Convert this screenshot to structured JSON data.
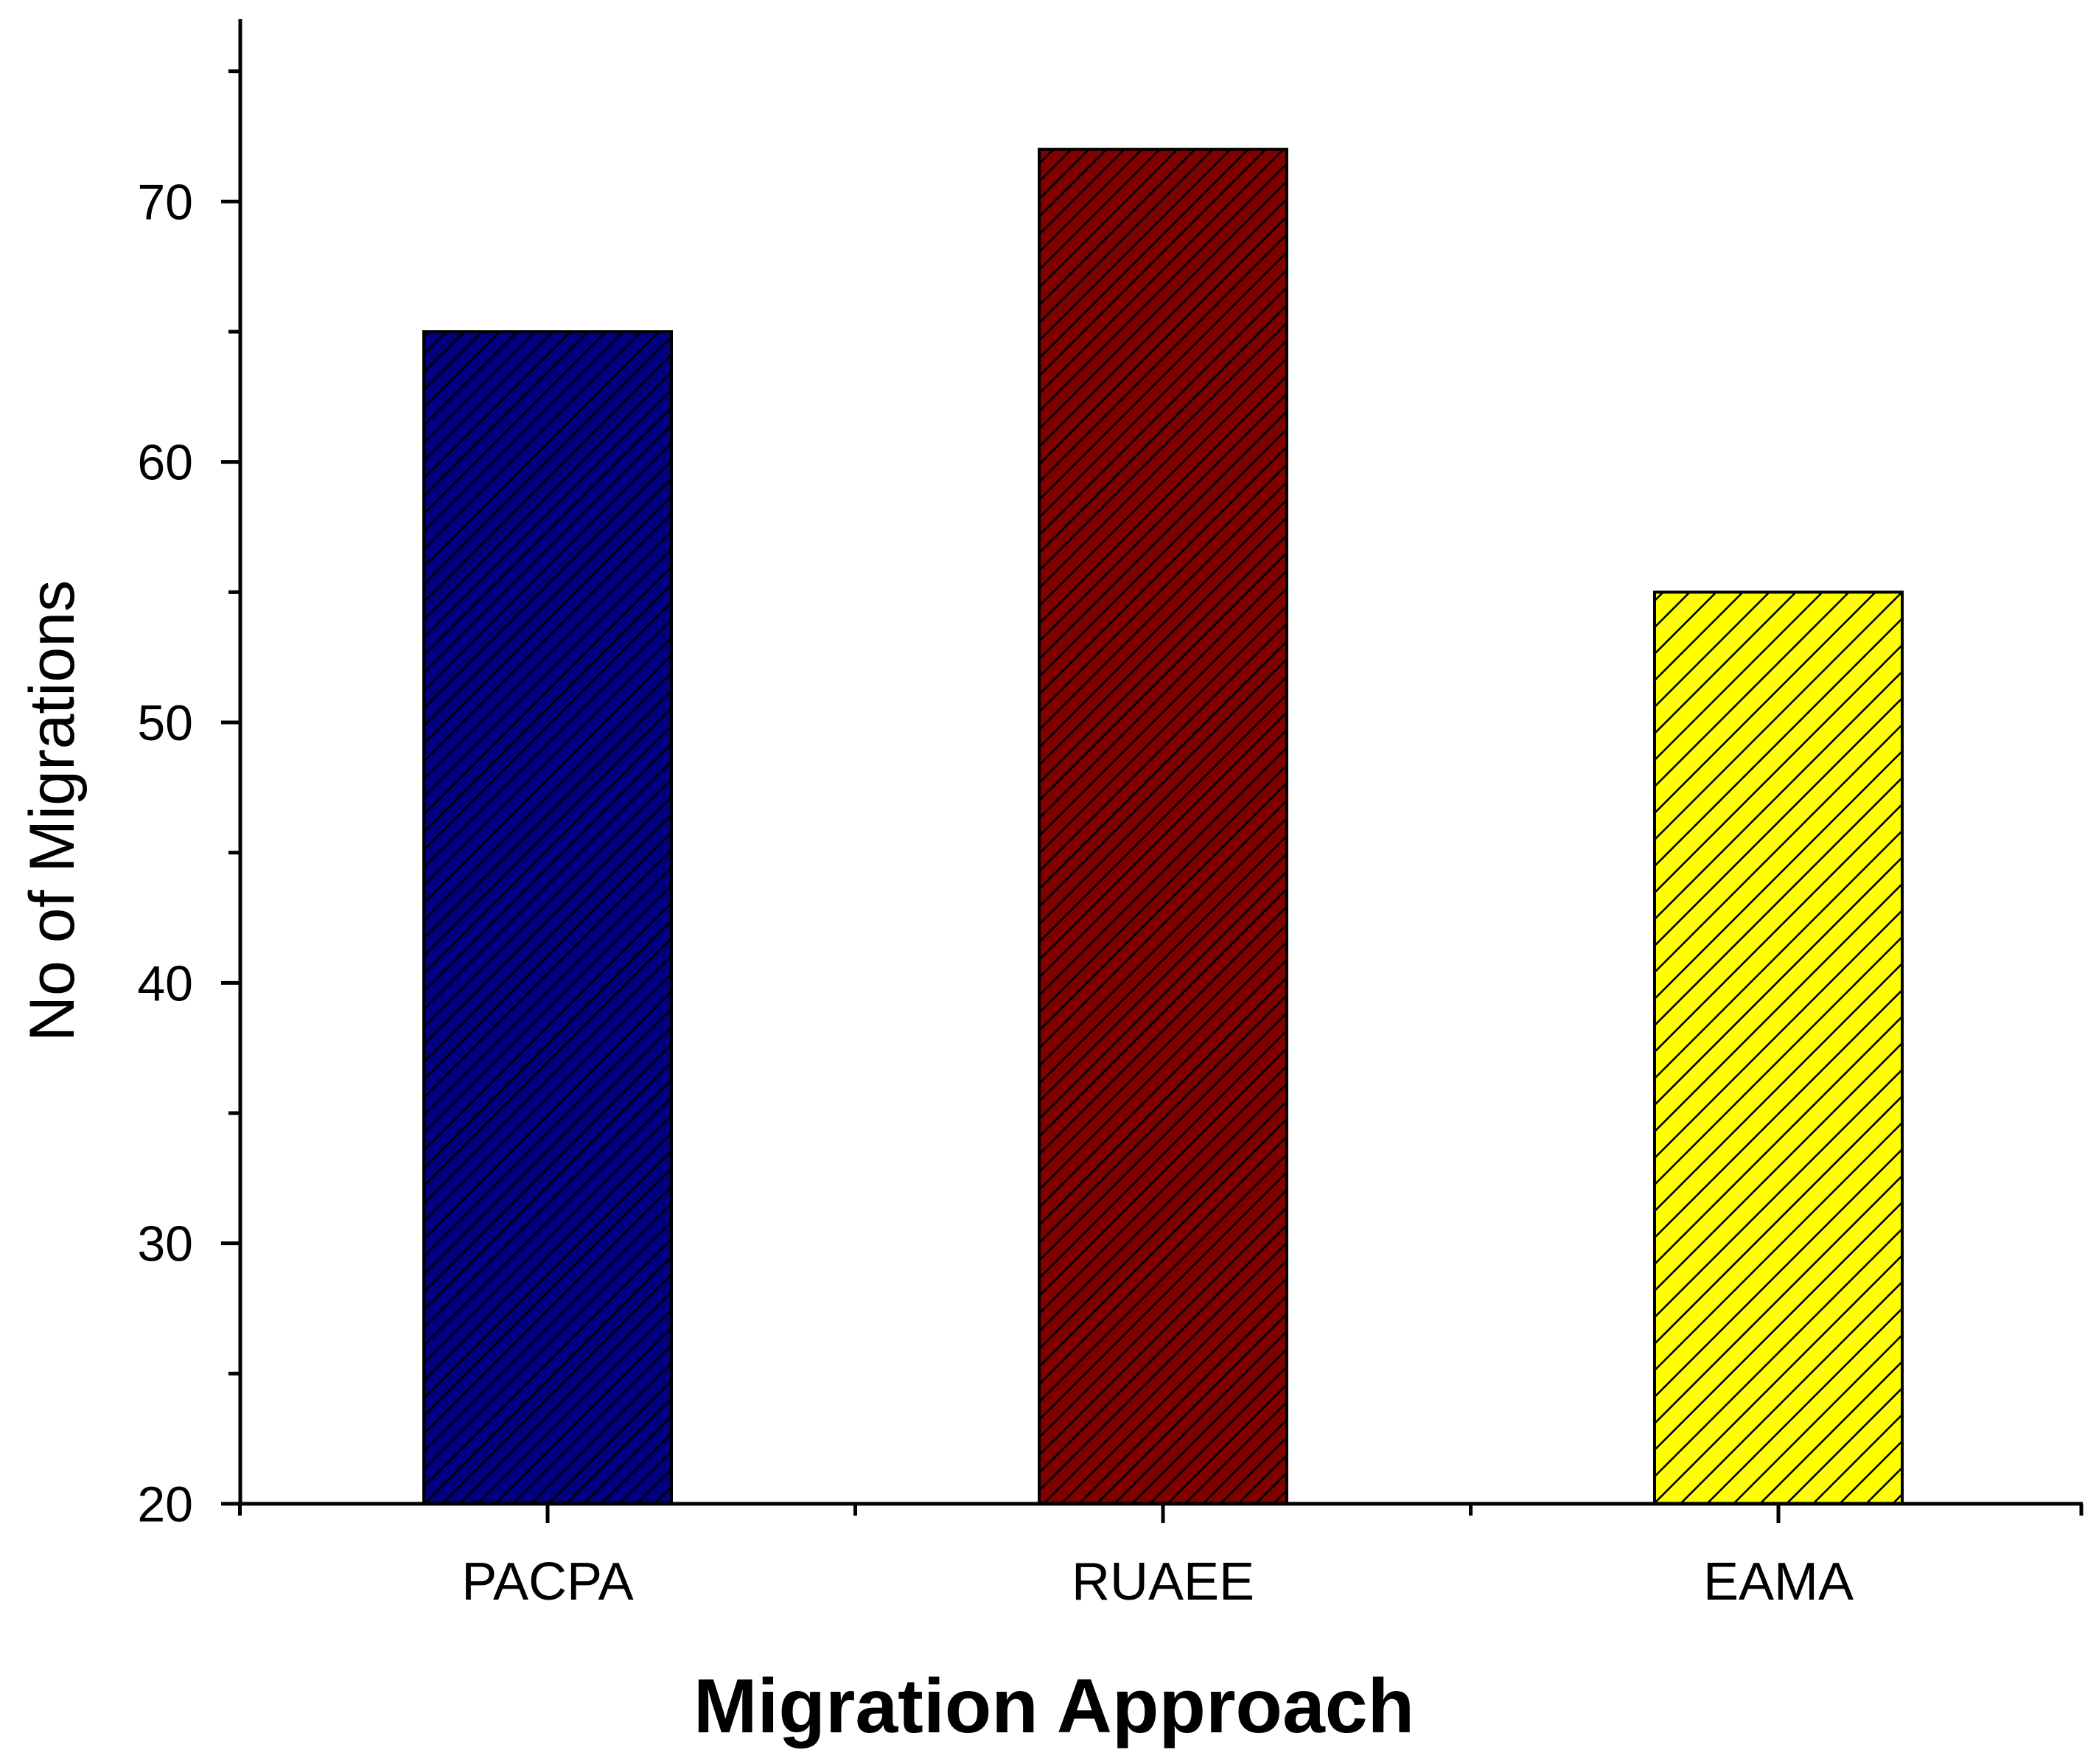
{
  "chart_data": {
    "type": "bar",
    "title": "",
    "categories": [
      "PACPA",
      "RUAEE",
      "EAMA"
    ],
    "values": [
      65,
      72,
      55
    ],
    "xlabel": "Migration Approach",
    "ylabel": "No of Migrations",
    "ylim": [
      20,
      77
    ],
    "yticks": [
      20,
      30,
      40,
      50,
      60,
      70
    ],
    "yminor_step": 5,
    "grid": false,
    "bar_colors": [
      "#000080",
      "#800000",
      "#FFFF00"
    ],
    "hatch": "diagonal"
  }
}
